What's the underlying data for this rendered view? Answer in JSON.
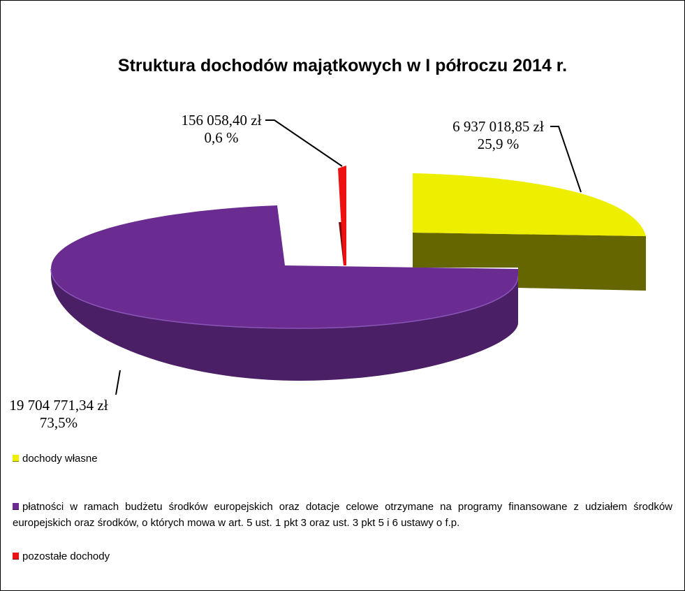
{
  "chart_data": {
    "type": "pie",
    "title": "Struktura dochodów majątkowych w  I półroczu 2014 r.",
    "series": [
      {
        "name": "dochody własne",
        "value": 6937018.85,
        "value_label": "6 937 018,85 zł",
        "percent_label": "25,9 %",
        "color": "#eeee00",
        "side_color": "#666600"
      },
      {
        "name": "płatności w ramach budżetu środków europejskich oraz dotacje celowe otrzymane na programy finansowane z udziałem środków europejskich oraz środków, o których mowa w art. 5 ust. 1 pkt 3 oraz ust. 3 pkt 5 i 6 ustawy o f.p.",
        "value": 19704771.34,
        "value_label": "19 704 771,34 zł",
        "percent_label": "73,5%",
        "color": "#6a2c91",
        "side_color": "#4a1f66"
      },
      {
        "name": "pozostałe dochody",
        "value": 156058.4,
        "value_label": "156 058,40 zł",
        "percent_label": "0,6 %",
        "color": "#ee1111",
        "side_color": "#7a0a0a"
      }
    ],
    "legend_position": "bottom",
    "style": "3d-exploded"
  }
}
